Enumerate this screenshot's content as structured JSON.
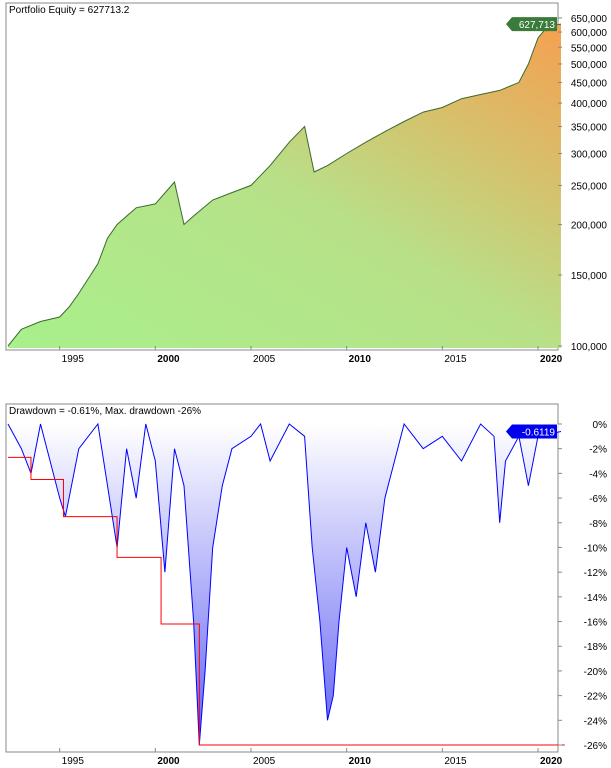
{
  "chart_data": [
    {
      "type": "area",
      "title": "Portfolio Equity = 627713.2",
      "scale": "log",
      "ylim": [
        97000,
        670000
      ],
      "xlim": [
        1992.3,
        2021.4
      ],
      "yticks": [
        {
          "v": 100000,
          "l": "100,000"
        },
        {
          "v": 150000,
          "l": "150,000"
        },
        {
          "v": 200000,
          "l": "200,000"
        },
        {
          "v": 250000,
          "l": "250,000"
        },
        {
          "v": 300000,
          "l": "300,000"
        },
        {
          "v": 350000,
          "l": "350,000"
        },
        {
          "v": 400000,
          "l": "400,000"
        },
        {
          "v": 450000,
          "l": "450,000"
        },
        {
          "v": 500000,
          "l": "500,000"
        },
        {
          "v": 550000,
          "l": "550,000"
        },
        {
          "v": 600000,
          "l": "600,000"
        },
        {
          "v": 650000,
          "l": "650,000"
        }
      ],
      "last_label": "627,713",
      "line_color": "#3a6b2a",
      "x": [
        1992.3,
        1993,
        1994,
        1995,
        1995.5,
        1996,
        1997,
        1997.5,
        1998,
        1999,
        2000,
        2001,
        2001.5,
        2002,
        2003,
        2004,
        2005,
        2006,
        2007,
        2007.8,
        2008.3,
        2009,
        2010,
        2011,
        2012,
        2013,
        2014,
        2015,
        2016,
        2017,
        2018,
        2019,
        2019.5,
        2020,
        2020.5,
        2021.2
      ],
      "y": [
        100000,
        110000,
        115000,
        118000,
        125000,
        135000,
        160000,
        185000,
        200000,
        220000,
        225000,
        255000,
        200000,
        210000,
        230000,
        240000,
        250000,
        280000,
        320000,
        350000,
        270000,
        280000,
        300000,
        320000,
        340000,
        360000,
        380000,
        390000,
        410000,
        420000,
        430000,
        450000,
        500000,
        580000,
        620000,
        627713
      ]
    },
    {
      "type": "area",
      "title": "Drawdown = -0.61%, Max. drawdown -26%",
      "ylim": [
        -26.8,
        0.5
      ],
      "xlim": [
        1992.3,
        2021.4
      ],
      "yticks": [
        {
          "v": 0,
          "l": "0%"
        },
        {
          "v": -2,
          "l": "-2%"
        },
        {
          "v": -4,
          "l": "-4%"
        },
        {
          "v": -6,
          "l": "-6%"
        },
        {
          "v": -8,
          "l": "-8%"
        },
        {
          "v": -10,
          "l": "-10%"
        },
        {
          "v": -12,
          "l": "-12%"
        },
        {
          "v": -14,
          "l": "-14%"
        },
        {
          "v": -16,
          "l": "-16%"
        },
        {
          "v": -18,
          "l": "-18%"
        },
        {
          "v": -20,
          "l": "-20%"
        },
        {
          "v": -22,
          "l": "-22%"
        },
        {
          "v": -24,
          "l": "-24%"
        },
        {
          "v": -26,
          "l": "-26%"
        }
      ],
      "last_label": "-0.6119",
      "line_color": "#0000ff",
      "max_dd_color": "#ff0000",
      "x": [
        1992.3,
        1993,
        1993.5,
        1994,
        1995,
        1995.3,
        1996,
        1997,
        1997.5,
        1998,
        1998.5,
        1999,
        1999.5,
        2000,
        2000.5,
        2001,
        2001.5,
        2002,
        2002.3,
        2002.6,
        2003,
        2003.5,
        2004,
        2005,
        2005.5,
        2006,
        2007,
        2007.8,
        2008.2,
        2008.6,
        2009,
        2009.3,
        2009.6,
        2010,
        2010.5,
        2011,
        2011.5,
        2012,
        2013,
        2014,
        2015,
        2016,
        2017,
        2017.7,
        2018,
        2018.3,
        2019,
        2019.5,
        2020,
        2021.2
      ],
      "y": [
        0,
        -2,
        -4,
        0,
        -6,
        -7.5,
        -2,
        0,
        -5,
        -10,
        -2,
        -6,
        0,
        -3,
        -12,
        -2,
        -5,
        -16,
        -26,
        -20,
        -10,
        -5,
        -2,
        -1,
        0,
        -3,
        0,
        -1,
        -10,
        -16,
        -24,
        -22,
        -16,
        -10,
        -14,
        -8,
        -12,
        -6,
        0,
        -2,
        -1,
        -3,
        0,
        -1,
        -8,
        -3,
        -1,
        -5,
        -1,
        -0.61
      ],
      "max_dd": {
        "x": [
          1992.3,
          1993.5,
          1995.2,
          1998,
          2000.3,
          2002.3,
          2021.4
        ],
        "y": [
          -2.7,
          -4.5,
          -7.5,
          -10.8,
          -16.2,
          -26,
          -26
        ]
      }
    }
  ],
  "x_ticks": [
    {
      "v": 1995,
      "l": "1995",
      "bold": false
    },
    {
      "v": 2000,
      "l": "2000",
      "bold": true
    },
    {
      "v": 2005,
      "l": "2005",
      "bold": false
    },
    {
      "v": 2010,
      "l": "2010",
      "bold": true
    },
    {
      "v": 2015,
      "l": "2015",
      "bold": false
    },
    {
      "v": 2020,
      "l": "2020",
      "bold": true
    }
  ]
}
